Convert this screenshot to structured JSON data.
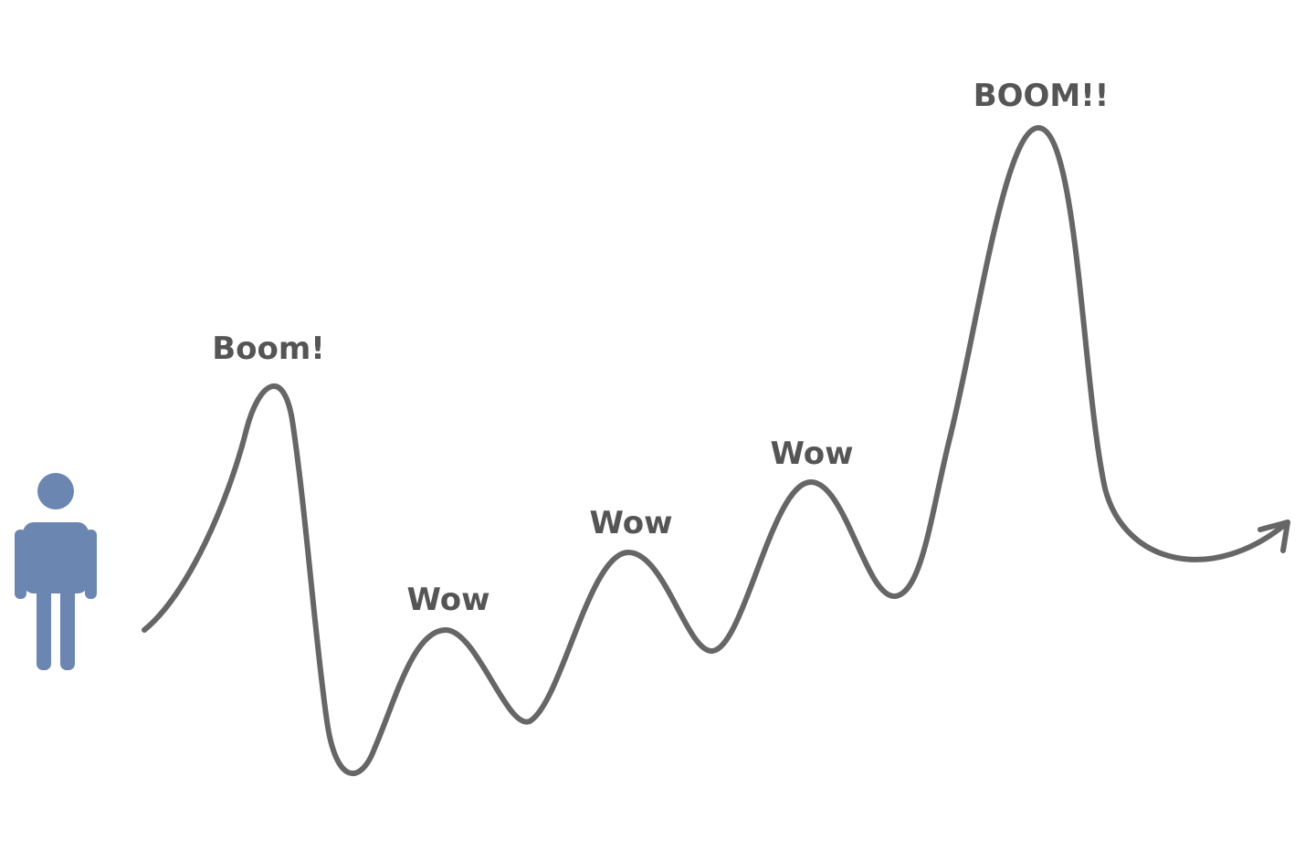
{
  "labels": {
    "first_peak": "Boom!",
    "wow_1": "Wow",
    "wow_2": "Wow",
    "wow_3": "Wow",
    "final_peak": "BOOM!!"
  },
  "colors": {
    "line": "#666666",
    "label": "#555555",
    "person": "#6b86b0",
    "background": "#ffffff"
  },
  "icons": {
    "person": "person-icon",
    "arrowhead": "arrowhead-icon"
  }
}
